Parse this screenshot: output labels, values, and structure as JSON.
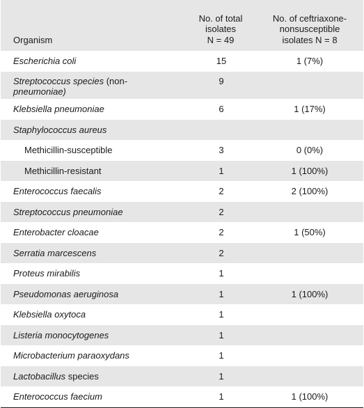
{
  "header": {
    "organism": "Organism",
    "total_line1": "No. of total",
    "total_line2": "isolates",
    "total_line3": "N = 49",
    "nons_line1": "No. of ceftriaxone-",
    "nons_line2": "nonsusceptible",
    "nons_line3": "isolates N = 8"
  },
  "rows": [
    {
      "organism": "Escherichia coli",
      "total": "15",
      "nonsusceptible": "1 (7%)"
    },
    {
      "organism": "Streptococcus species (non-pneumoniae)",
      "organism_line1": "Streptococcus species",
      "organism_plain": " (non-",
      "organism_line2": "pneumoniae)",
      "total": "9",
      "nonsusceptible": ""
    },
    {
      "organism": "Klebsiella pneumoniae",
      "total": "6",
      "nonsusceptible": "1 (17%)"
    },
    {
      "organism": "Staphylococcus aureus",
      "total": "",
      "nonsusceptible": ""
    },
    {
      "organism": "Methicillin-susceptible",
      "total": "3",
      "nonsusceptible": "0 (0%)"
    },
    {
      "organism": "Methicillin-resistant",
      "total": "1",
      "nonsusceptible": "1 (100%)"
    },
    {
      "organism": "Enterococcus faecalis",
      "total": "2",
      "nonsusceptible": "2 (100%)"
    },
    {
      "organism": "Streptococcus pneumoniae",
      "total": "2",
      "nonsusceptible": ""
    },
    {
      "organism": "Enterobacter cloacae",
      "total": "2",
      "nonsusceptible": "1 (50%)"
    },
    {
      "organism": "Serratia marcescens",
      "total": "2",
      "nonsusceptible": ""
    },
    {
      "organism": "Proteus mirabilis",
      "total": "1",
      "nonsusceptible": ""
    },
    {
      "organism": "Pseudomonas aeruginosa",
      "total": "1",
      "nonsusceptible": "1 (100%)"
    },
    {
      "organism": "Klebsiella oxytoca",
      "total": "1",
      "nonsusceptible": ""
    },
    {
      "organism": "Listeria monocytogenes",
      "total": "1",
      "nonsusceptible": ""
    },
    {
      "organism": "Microbacterium paraoxydans",
      "total": "1",
      "nonsusceptible": ""
    },
    {
      "organism": "Lactobacillus",
      "organism_suffix": " species",
      "total": "1",
      "nonsusceptible": ""
    },
    {
      "organism": "Enterococcus faecium",
      "total": "1",
      "nonsusceptible": "1 (100%)"
    }
  ]
}
